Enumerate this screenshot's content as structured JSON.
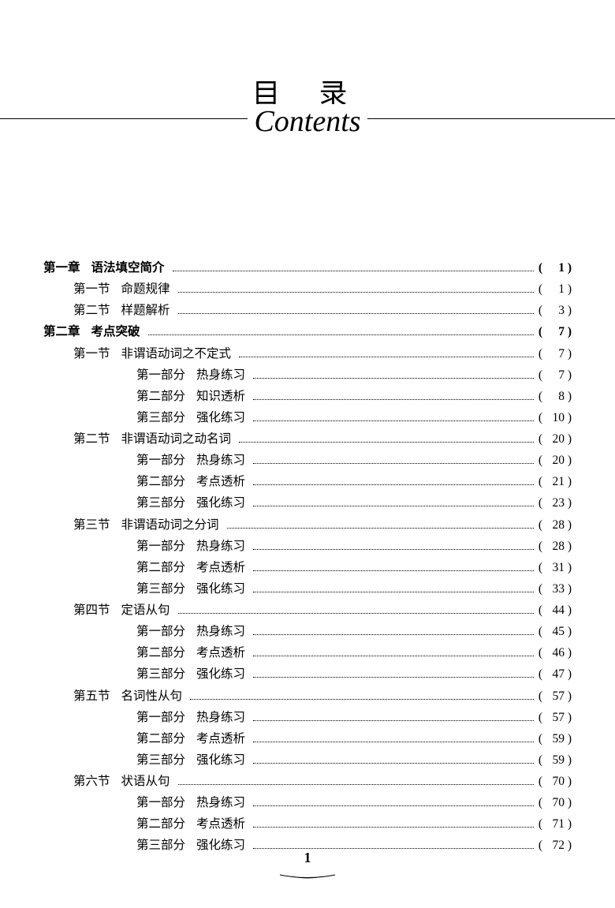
{
  "header": {
    "title_cn": "目 录",
    "title_en": "Contents"
  },
  "toc": [
    {
      "level": 0,
      "label": "第一章",
      "title": "语法填空简介",
      "page": "1"
    },
    {
      "level": 1,
      "label": "第一节",
      "title": "命题规律",
      "page": "1"
    },
    {
      "level": 1,
      "label": "第二节",
      "title": "样题解析",
      "page": "3"
    },
    {
      "level": 0,
      "label": "第二章",
      "title": "考点突破",
      "page": "7"
    },
    {
      "level": 1,
      "label": "第一节",
      "title": "非谓语动词之不定式",
      "page": "7"
    },
    {
      "level": 2,
      "label": "第一部分",
      "title": "热身练习",
      "page": "7"
    },
    {
      "level": 2,
      "label": "第二部分",
      "title": "知识透析",
      "page": "8"
    },
    {
      "level": 2,
      "label": "第三部分",
      "title": "强化练习",
      "page": "10"
    },
    {
      "level": 1,
      "label": "第二节",
      "title": "非谓语动词之动名词",
      "page": "20"
    },
    {
      "level": 2,
      "label": "第一部分",
      "title": "热身练习",
      "page": "20"
    },
    {
      "level": 2,
      "label": "第二部分",
      "title": "考点透析",
      "page": "21"
    },
    {
      "level": 2,
      "label": "第三部分",
      "title": "强化练习",
      "page": "23"
    },
    {
      "level": 1,
      "label": "第三节",
      "title": "非谓语动词之分词",
      "page": "28"
    },
    {
      "level": 2,
      "label": "第一部分",
      "title": "热身练习",
      "page": "28"
    },
    {
      "level": 2,
      "label": "第二部分",
      "title": "考点透析",
      "page": "31"
    },
    {
      "level": 2,
      "label": "第三部分",
      "title": "强化练习",
      "page": "33"
    },
    {
      "level": 1,
      "label": "第四节",
      "title": "定语从句",
      "page": "44"
    },
    {
      "level": 2,
      "label": "第一部分",
      "title": "热身练习",
      "page": "45"
    },
    {
      "level": 2,
      "label": "第二部分",
      "title": "考点透析",
      "page": "46"
    },
    {
      "level": 2,
      "label": "第三部分",
      "title": "强化练习",
      "page": "47"
    },
    {
      "level": 1,
      "label": "第五节",
      "title": "名词性从句",
      "page": "57"
    },
    {
      "level": 2,
      "label": "第一部分",
      "title": "热身练习",
      "page": "57"
    },
    {
      "level": 2,
      "label": "第二部分",
      "title": "考点透析",
      "page": "59"
    },
    {
      "level": 2,
      "label": "第三部分",
      "title": "强化练习",
      "page": "59"
    },
    {
      "level": 1,
      "label": "第六节",
      "title": "状语从句",
      "page": "70"
    },
    {
      "level": 2,
      "label": "第一部分",
      "title": "热身练习",
      "page": "70"
    },
    {
      "level": 2,
      "label": "第二部分",
      "title": "考点透析",
      "page": "71"
    },
    {
      "level": 2,
      "label": "第三部分",
      "title": "强化练习",
      "page": "72"
    }
  ],
  "footer": {
    "page_number": "1"
  }
}
